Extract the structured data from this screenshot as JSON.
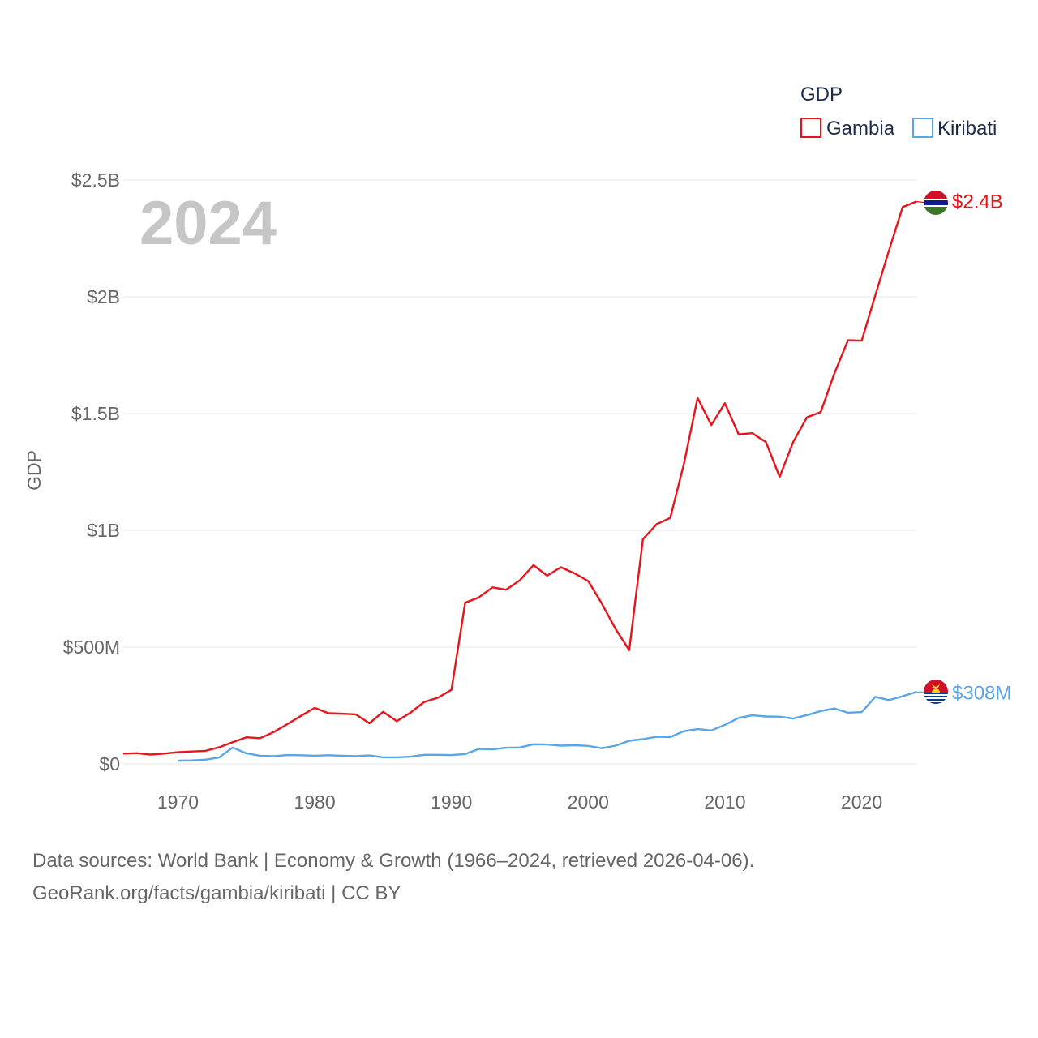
{
  "chart_data": {
    "type": "line",
    "year_label": "2024",
    "ylabel": "GDP",
    "ylim": [
      0,
      2500000000
    ],
    "xlim": [
      1966,
      2024
    ],
    "y_ticks": [
      {
        "value": 0,
        "label": "$0"
      },
      {
        "value": 500000000,
        "label": "$500M"
      },
      {
        "value": 1000000000,
        "label": "$1B"
      },
      {
        "value": 1500000000,
        "label": "$1.5B"
      },
      {
        "value": 2000000000,
        "label": "$2B"
      },
      {
        "value": 2500000000,
        "label": "$2.5B"
      }
    ],
    "x_ticks": [
      {
        "value": 1970,
        "label": "1970"
      },
      {
        "value": 1980,
        "label": "1980"
      },
      {
        "value": 1990,
        "label": "1990"
      },
      {
        "value": 2000,
        "label": "2000"
      },
      {
        "value": 2010,
        "label": "2010"
      },
      {
        "value": 2020,
        "label": "2020"
      }
    ],
    "legend": {
      "title": "GDP",
      "position": "top-right"
    },
    "series": [
      {
        "name": "Gambia",
        "color": "#e8141c",
        "end_label": "$2.4B",
        "flag": "gambia-flag-icon",
        "points": [
          [
            1966,
            44
          ],
          [
            1967,
            46
          ],
          [
            1968,
            40
          ],
          [
            1969,
            44
          ],
          [
            1970,
            50
          ],
          [
            1971,
            53
          ],
          [
            1972,
            56
          ],
          [
            1973,
            71
          ],
          [
            1974,
            93
          ],
          [
            1975,
            114
          ],
          [
            1976,
            110
          ],
          [
            1977,
            136
          ],
          [
            1978,
            170
          ],
          [
            1979,
            206
          ],
          [
            1980,
            240
          ],
          [
            1981,
            217
          ],
          [
            1982,
            215
          ],
          [
            1983,
            212
          ],
          [
            1984,
            174
          ],
          [
            1985,
            223
          ],
          [
            1986,
            183
          ],
          [
            1987,
            219
          ],
          [
            1988,
            265
          ],
          [
            1989,
            283
          ],
          [
            1990,
            317
          ],
          [
            1991,
            690
          ],
          [
            1992,
            713
          ],
          [
            1993,
            756
          ],
          [
            1994,
            746
          ],
          [
            1995,
            786
          ],
          [
            1996,
            851
          ],
          [
            1997,
            806
          ],
          [
            1998,
            842
          ],
          [
            1999,
            816
          ],
          [
            2000,
            783
          ],
          [
            2001,
            686
          ],
          [
            2002,
            578
          ],
          [
            2003,
            487
          ],
          [
            2004,
            962
          ],
          [
            2005,
            1026
          ],
          [
            2006,
            1053
          ],
          [
            2007,
            1284
          ],
          [
            2008,
            1567
          ],
          [
            2009,
            1451
          ],
          [
            2010,
            1544
          ],
          [
            2011,
            1411
          ],
          [
            2012,
            1416
          ],
          [
            2013,
            1378
          ],
          [
            2014,
            1229
          ],
          [
            2015,
            1379
          ],
          [
            2016,
            1484
          ],
          [
            2017,
            1506
          ],
          [
            2018,
            1671
          ],
          [
            2019,
            1814
          ],
          [
            2020,
            1812
          ],
          [
            2021,
            2007
          ],
          [
            2022,
            2199
          ],
          [
            2023,
            2384
          ],
          [
            2024,
            2408
          ]
        ]
      },
      {
        "name": "Kiribati",
        "color": "#5aa5e6",
        "end_label": "$308M",
        "flag": "kiribati-flag-icon",
        "points": [
          [
            1970,
            14
          ],
          [
            1971,
            15
          ],
          [
            1972,
            18
          ],
          [
            1973,
            27
          ],
          [
            1974,
            70
          ],
          [
            1975,
            45
          ],
          [
            1976,
            35
          ],
          [
            1977,
            33
          ],
          [
            1978,
            38
          ],
          [
            1979,
            37
          ],
          [
            1980,
            35
          ],
          [
            1981,
            37
          ],
          [
            1982,
            35
          ],
          [
            1983,
            33
          ],
          [
            1984,
            36
          ],
          [
            1985,
            28
          ],
          [
            1986,
            28
          ],
          [
            1987,
            31
          ],
          [
            1988,
            39
          ],
          [
            1989,
            39
          ],
          [
            1990,
            38
          ],
          [
            1991,
            42
          ],
          [
            1992,
            64
          ],
          [
            1993,
            62
          ],
          [
            1994,
            69
          ],
          [
            1995,
            70
          ],
          [
            1996,
            84
          ],
          [
            1997,
            83
          ],
          [
            1998,
            78
          ],
          [
            1999,
            80
          ],
          [
            2000,
            77
          ],
          [
            2001,
            67
          ],
          [
            2002,
            78
          ],
          [
            2003,
            99
          ],
          [
            2004,
            106
          ],
          [
            2005,
            116
          ],
          [
            2006,
            115
          ],
          [
            2007,
            140
          ],
          [
            2008,
            149
          ],
          [
            2009,
            143
          ],
          [
            2010,
            167
          ],
          [
            2011,
            197
          ],
          [
            2012,
            208
          ],
          [
            2013,
            203
          ],
          [
            2014,
            202
          ],
          [
            2015,
            194
          ],
          [
            2016,
            209
          ],
          [
            2017,
            226
          ],
          [
            2018,
            237
          ],
          [
            2019,
            219
          ],
          [
            2020,
            222
          ],
          [
            2021,
            287
          ],
          [
            2022,
            273
          ],
          [
            2023,
            290
          ],
          [
            2024,
            308
          ]
        ]
      }
    ],
    "point_units": "millions USD"
  },
  "source": {
    "line1": "Data sources: World Bank | Economy & Growth (1966–2024, retrieved 2026-04-06).",
    "line2": "GeoRank.org/facts/gambia/kiribati | CC BY"
  }
}
